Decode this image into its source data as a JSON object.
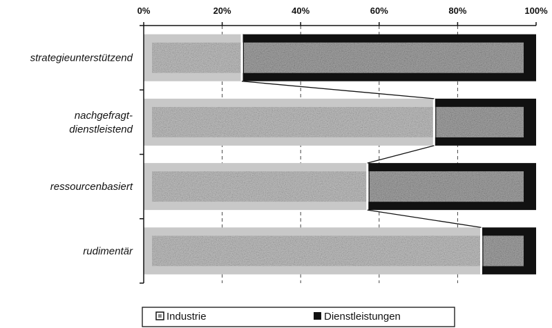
{
  "chart_data": {
    "type": "bar",
    "orientation": "horizontal",
    "stacked": "percent",
    "categories": [
      "strategieunterstützend",
      "nachgefragt-dienstleistend",
      "ressourcenbasiert",
      "rudimentär"
    ],
    "category_lines": [
      [
        "strategieunterstützend"
      ],
      [
        "nachgefragt-",
        "dienstleistend"
      ],
      [
        "ressourcenbasiert"
      ],
      [
        "rudimentär"
      ]
    ],
    "series": [
      {
        "name": "Industrie",
        "values": [
          25,
          74,
          57,
          86
        ],
        "color": "#c8c8c8"
      },
      {
        "name": "Dienstleistungen",
        "values": [
          75,
          26,
          43,
          14
        ],
        "color": "#111111"
      }
    ],
    "xlim": [
      0,
      100
    ],
    "x_ticks": [
      "0%",
      "20%",
      "40%",
      "60%",
      "80%",
      "100%"
    ],
    "x_tick_values": [
      0,
      20,
      40,
      60,
      80,
      100
    ],
    "axis_position": "top",
    "grid": true,
    "series_lines": true,
    "legend_position": "bottom"
  }
}
